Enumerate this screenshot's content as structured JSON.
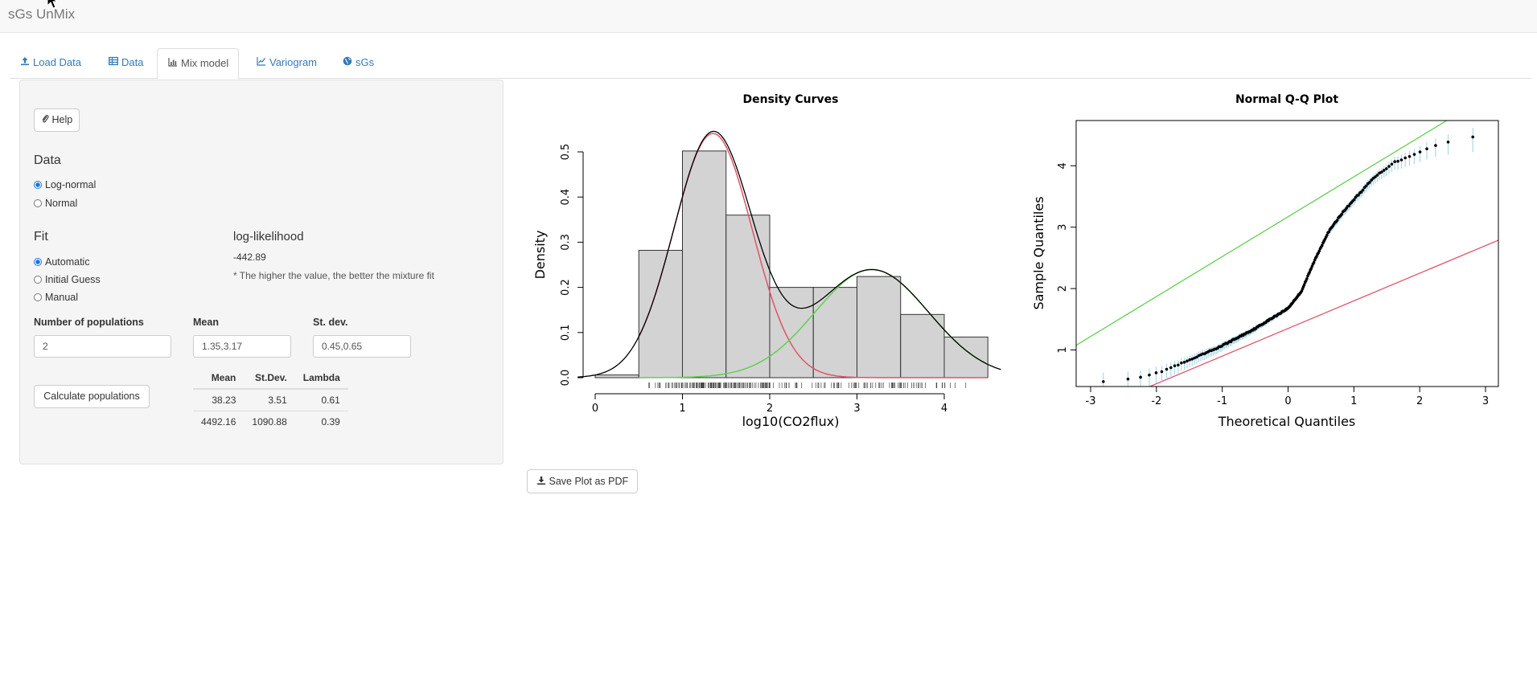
{
  "app": {
    "title": "sGs UnMix"
  },
  "tabs": [
    {
      "label": "Load Data",
      "icon": "upload-icon"
    },
    {
      "label": "Data",
      "icon": "table-icon"
    },
    {
      "label": "Mix model",
      "icon": "bar-chart-icon",
      "active": true
    },
    {
      "label": "Variogram",
      "icon": "line-chart-icon"
    },
    {
      "label": "sGs",
      "icon": "globe-icon"
    }
  ],
  "sidebar": {
    "help_label": "Help",
    "data_heading": "Data",
    "data_options": [
      "Log-normal",
      "Normal"
    ],
    "data_selected": "Log-normal",
    "fit_heading": "Fit",
    "fit_options": [
      "Automatic",
      "Initial Guess",
      "Manual"
    ],
    "fit_selected": "Automatic",
    "loglik_heading": "log-likelihood",
    "loglik_value": "-442.89",
    "loglik_note": "* The higher the value, the better the mixture fit",
    "npop_label": "Number of populations",
    "npop_value": "2",
    "mean_label": "Mean",
    "mean_value": "1.35,3.17",
    "sd_label": "St. dev.",
    "sd_value": "0.45,0.65",
    "calc_label": "Calculate populations",
    "table": {
      "headers": [
        "Mean",
        "St.Dev.",
        "Lambda"
      ],
      "rows": [
        [
          "38.23",
          "3.51",
          "0.61"
        ],
        [
          "4492.16",
          "1090.88",
          "0.39"
        ]
      ]
    }
  },
  "save_label": "Save Plot as PDF",
  "colors": {
    "accent": "#337ab7",
    "comp1": "#df536b",
    "comp2": "#61d04f",
    "qq_band": "#add8e6",
    "bar_fill": "#d3d3d3"
  },
  "chart_data": [
    {
      "type": "bar",
      "title": "Density Curves",
      "xlabel": "log10(CO2flux)",
      "ylabel": "Density",
      "x_ticks": [
        0,
        1,
        2,
        3,
        4
      ],
      "y_ticks": [
        "0.0",
        "0.1",
        "0.2",
        "0.3",
        "0.4",
        "0.5"
      ],
      "xlim": [
        -0.2,
        4.65
      ],
      "ylim": [
        0,
        0.55
      ],
      "bins": [
        {
          "x0": 0.0,
          "x1": 0.5,
          "value": 0.006
        },
        {
          "x0": 0.5,
          "x1": 1.0,
          "value": 0.282
        },
        {
          "x0": 1.0,
          "x1": 1.5,
          "value": 0.502
        },
        {
          "x0": 1.5,
          "x1": 2.0,
          "value": 0.36
        },
        {
          "x0": 2.0,
          "x1": 2.5,
          "value": 0.2
        },
        {
          "x0": 2.5,
          "x1": 3.0,
          "value": 0.2
        },
        {
          "x0": 3.0,
          "x1": 3.5,
          "value": 0.224
        },
        {
          "x0": 3.5,
          "x1": 4.0,
          "value": 0.14
        },
        {
          "x0": 4.0,
          "x1": 4.5,
          "value": 0.09
        }
      ],
      "components": [
        {
          "mean": 1.35,
          "sd": 0.45,
          "lambda": 0.61,
          "color": "#df536b"
        },
        {
          "mean": 3.17,
          "sd": 0.65,
          "lambda": 0.39,
          "color": "#61d04f"
        }
      ],
      "mixture_color": "#000000",
      "rug": true
    },
    {
      "type": "scatter",
      "title": "Normal Q-Q Plot",
      "xlabel": "Theoretical Quantiles",
      "ylabel": "Sample Quantiles",
      "x_ticks": [
        -3,
        -2,
        -1,
        0,
        1,
        2,
        3
      ],
      "y_ticks": [
        1,
        2,
        3,
        4
      ],
      "xlim": [
        -3.2,
        3.2
      ],
      "ylim": [
        0.35,
        4.65
      ],
      "lines": [
        {
          "name": "comp2",
          "color": "#61d04f",
          "intercept": 3.17,
          "slope": 0.65
        },
        {
          "name": "comp1",
          "color": "#df536b",
          "intercept": 1.35,
          "slope": 0.45
        }
      ],
      "n_points": 200,
      "curve": [
        [
          -3.0,
          0.48
        ],
        [
          -2.6,
          0.51
        ],
        [
          -2.3,
          0.55
        ],
        [
          -2.0,
          0.62
        ],
        [
          -1.5,
          0.83
        ],
        [
          -1.0,
          1.07
        ],
        [
          -0.5,
          1.35
        ],
        [
          0.0,
          1.68
        ],
        [
          0.2,
          1.95
        ],
        [
          0.4,
          2.45
        ],
        [
          0.6,
          2.9
        ],
        [
          0.8,
          3.2
        ],
        [
          1.0,
          3.45
        ],
        [
          1.3,
          3.8
        ],
        [
          1.6,
          4.05
        ],
        [
          1.9,
          4.18
        ],
        [
          2.1,
          4.28
        ],
        [
          2.4,
          4.38
        ],
        [
          2.65,
          4.45
        ],
        [
          3.0,
          4.48
        ]
      ]
    }
  ]
}
